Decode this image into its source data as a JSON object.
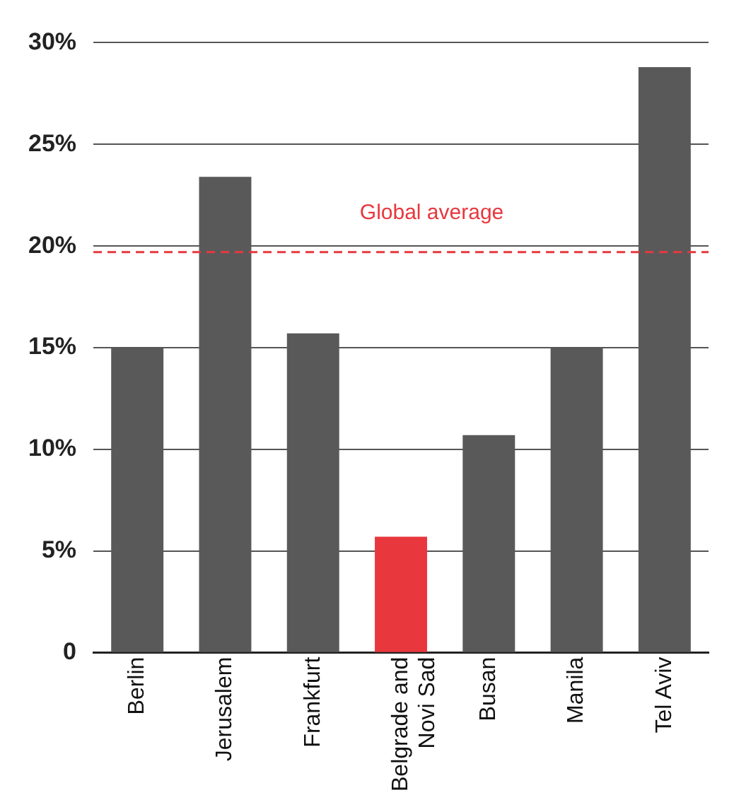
{
  "chart_data": {
    "type": "bar",
    "categories": [
      "Berlin",
      "Jerusalem",
      "Frankfurt",
      "Belgrade and Novi Sad",
      "Busan",
      "Manila",
      "Tel Aviv"
    ],
    "values": [
      15,
      23.4,
      15.7,
      5.7,
      10.7,
      15,
      28.8
    ],
    "colors": [
      "#595959",
      "#595959",
      "#595959",
      "#e8383d",
      "#595959",
      "#595959",
      "#595959"
    ],
    "ylim": [
      0,
      30
    ],
    "yticks": [
      {
        "value": 0,
        "label": "0"
      },
      {
        "value": 5,
        "label": "5%"
      },
      {
        "value": 10,
        "label": "10%"
      },
      {
        "value": 15,
        "label": "15%"
      },
      {
        "value": 20,
        "label": "20%"
      },
      {
        "value": 25,
        "label": "25%"
      },
      {
        "value": 30,
        "label": "30%"
      }
    ],
    "grid": "y",
    "ref_lines": [
      {
        "axis": "y",
        "value": 19.7,
        "label": "Global average",
        "color": "#e8383d",
        "line_style": "dashed"
      }
    ]
  }
}
